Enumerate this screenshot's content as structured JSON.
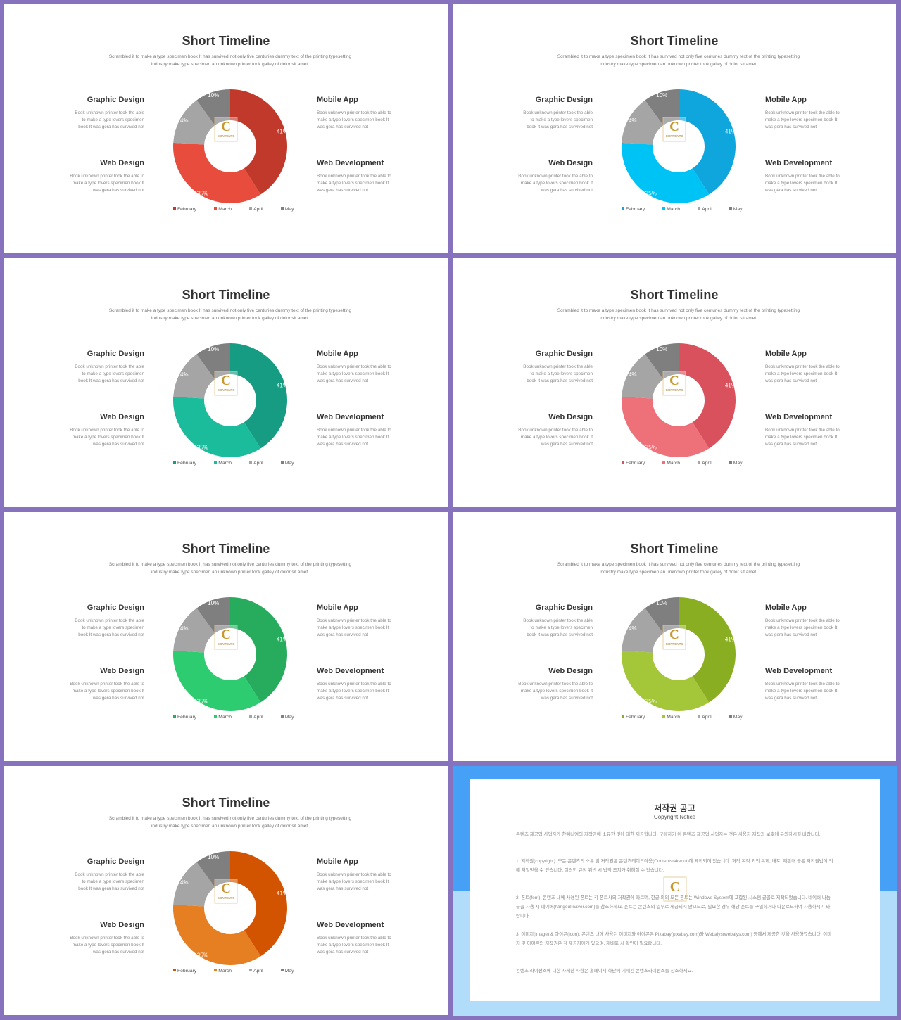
{
  "slide_common": {
    "title": "Short Timeline",
    "subtitle_line1": "Scrambled it to make a type specimen book It has survived  not only five  centuries dummy text of the printing typesetting",
    "subtitle_line2": "industry make type specimen an unknown printer took galley of dolor sit amet.",
    "graphic_design": {
      "label": "Graphic Design",
      "lines": [
        "Book unknown  printer  took the able",
        "to make a type lovers  specimen",
        "book It was gera has survived  not"
      ]
    },
    "web_design": {
      "label": "Web Design",
      "lines": [
        "Book unknown  printer  took the able to",
        "make a type lovers  specimen book It",
        "was gera has survived  not"
      ]
    },
    "mobile_app": {
      "label": "Mobile App",
      "lines": [
        "Book unknown  printer  took the able to",
        "make a type lovers  specimen book It",
        "was gera has survived  not"
      ]
    },
    "web_development": {
      "label": "Web Development",
      "lines": [
        "Book unknown  printer  took the able to",
        "make a type lovers  specimen book It",
        "was gera has survived  not"
      ]
    },
    "logo": {
      "letter": "C",
      "text": "CONTENTS"
    }
  },
  "slides": [
    {
      "colors": [
        "#c0392b",
        "#e74c3c"
      ],
      "legend_colors": [
        "#c0392b",
        "#e74c3c"
      ]
    },
    {
      "colors": [
        "#0fa6de",
        "#00c3f5"
      ],
      "legend_colors": [
        "#0fa6de",
        "#00c3f5"
      ]
    },
    {
      "colors": [
        "#169c82",
        "#1abc9c"
      ],
      "legend_colors": [
        "#169c82",
        "#1abc9c"
      ]
    },
    {
      "colors": [
        "#d9515c",
        "#ee7079"
      ],
      "legend_colors": [
        "#d9515c",
        "#ee7079"
      ]
    },
    {
      "colors": [
        "#27ac5e",
        "#2ecc71"
      ],
      "legend_colors": [
        "#27ac5e",
        "#2ecc71"
      ]
    },
    {
      "colors": [
        "#8aae22",
        "#a4c639"
      ],
      "legend_colors": [
        "#8aae22",
        "#a4c639"
      ]
    },
    {
      "colors": [
        "#d35400",
        "#e67e22"
      ],
      "legend_colors": [
        "#d35400",
        "#e67e22"
      ]
    }
  ],
  "chart_data": {
    "type": "pie",
    "variant": "donut",
    "categories": [
      "February",
      "March",
      "April",
      "May"
    ],
    "values": [
      41,
      35,
      14,
      10
    ],
    "labels": [
      "41%",
      "35%",
      "14%",
      "10%"
    ],
    "gray_colors": [
      "#a5a5a5",
      "#7f7f7f"
    ]
  },
  "copyright": {
    "title": "저작권 공고",
    "subtitle": "Copyright Notice",
    "intro": "콘텐츠 제공업 사업자가 한예니엄의 저작권에 소유한 것에 대한 제공합니다. 구매하기 이 콘텐츠 제공업 사업자는 것은 사용자 제작과 보호에 유의하시길 바랍니다.",
    "item1": "1. 저작권(copyright): 모든 콘텐츠의 소유 및 저작권은 콘텐츠테이크아웃(Contentstakeout)에 제작되어 있습니다. 저작 목적 외의 복제, 배포, 재판매 등은 저작권법에 의해 처벌받을 수 있습니다. 이러한 규정 위반 시 법적 조치가 취해질 수 있습니다.",
    "item2": "2. 폰트(font): 콘텐츠 내에 사용된 폰트는 각 폰트사의 저작권에 따르며, 한글 외의 모든 폰트는 Windows System에 포함된 시스템 글꼴로 제작되었습니다. 네이버 나눔글꼴 사용 시 네이버(hangeul.naver.com)를 참조하세요. 폰트는 콘텐츠의 일부로 제공되지 않으므로, 필요한 경우 해당 폰트를 구입하거나 다운로드하여 사용하시기 바랍니다.",
    "item3": "3. 이미지(image) & 아이콘(icon): 콘텐츠 내에 사용된 이미지와 아이콘은 Pixabay(pixabay.com)와 Webalys(webalys.com) 등에서 제공한 것을 사용하였습니다. 이미지 및 아이콘의 저작권은 각 제공자에게 있으며, 재배포 시 확인이 필요합니다.",
    "outro": "콘텐츠 라이선스에 대한 자세한 사항은 홈페이지 하단에 기재된 콘텐츠라이선스를 참조하세요."
  }
}
